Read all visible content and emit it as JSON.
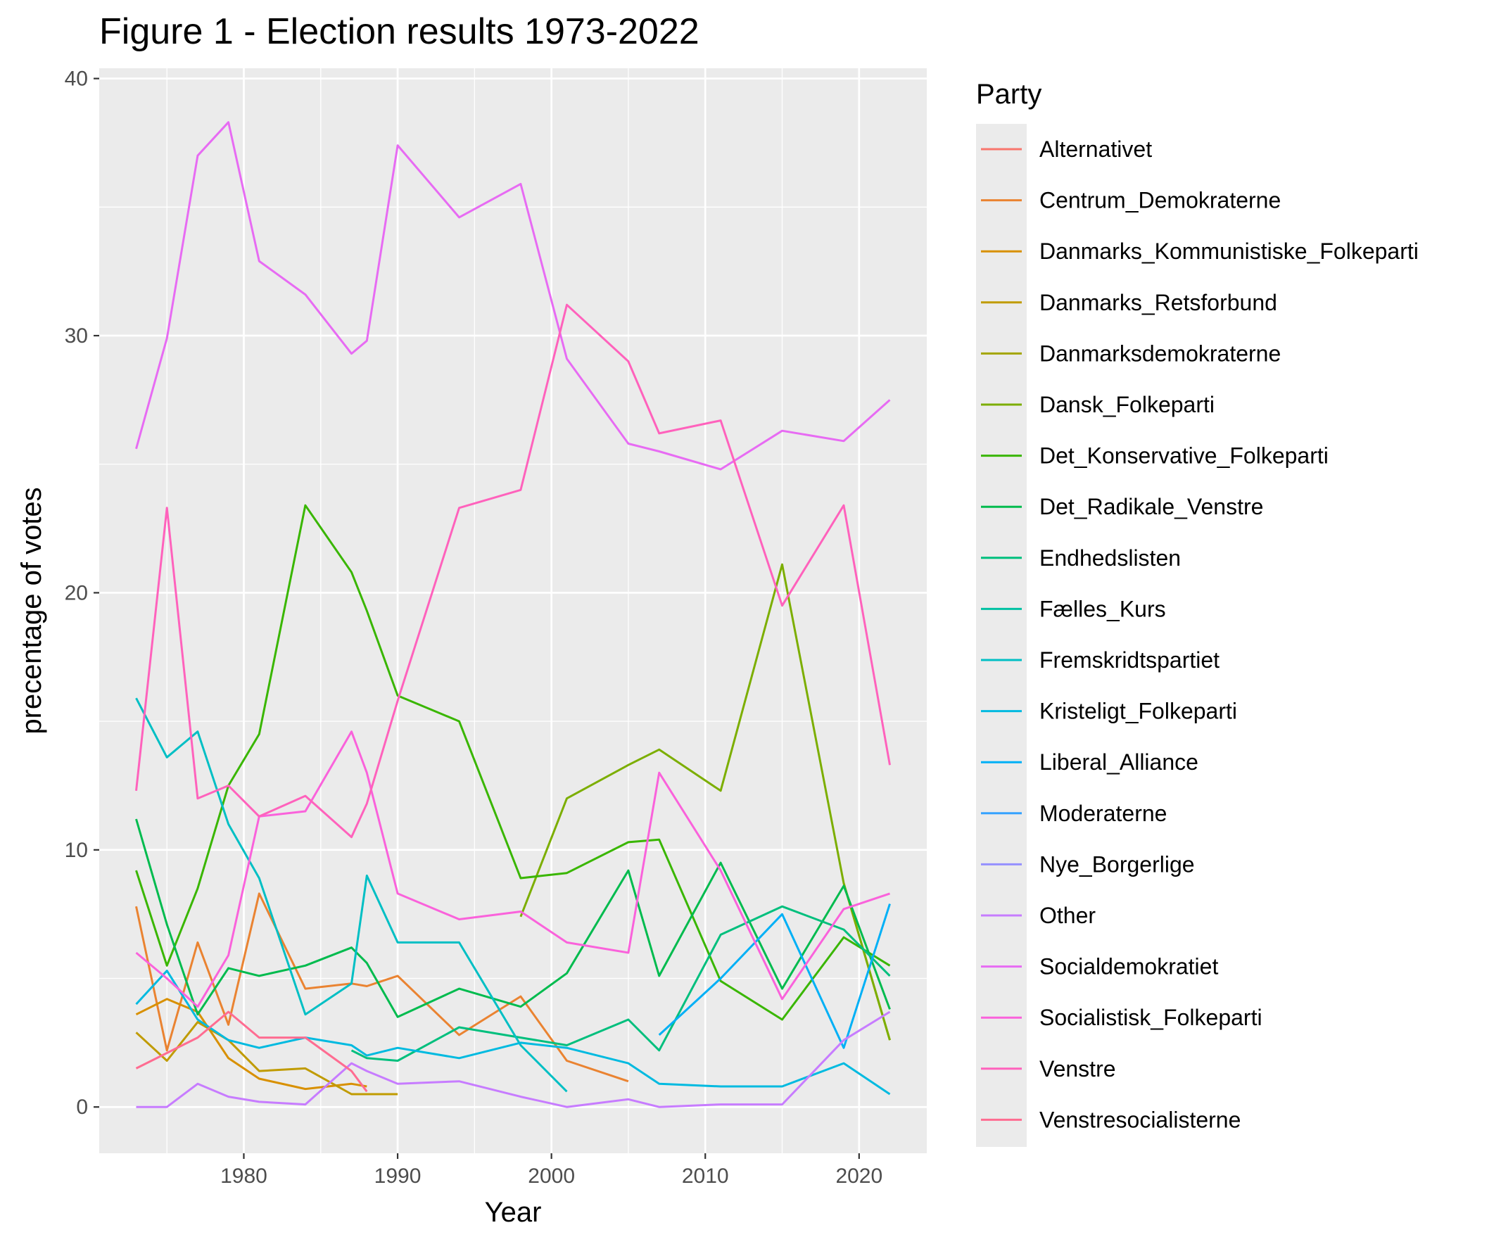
{
  "chart_data": {
    "type": "line",
    "title": "Figure 1 - Election results 1973-2022",
    "xlabel": "Year",
    "ylabel": "precentage of votes",
    "xlim": [
      1970.6,
      2024.4
    ],
    "ylim": [
      -1.8,
      40.4
    ],
    "x_ticks": [
      1980,
      1990,
      2000,
      2010,
      2020
    ],
    "y_ticks": [
      0,
      10,
      20,
      30,
      40
    ],
    "grid": true,
    "legend_title": "Party",
    "legend_position": "right",
    "series": [
      {
        "name": "Alternativet",
        "color": "#F8766D",
        "points": []
      },
      {
        "name": "Centrum_Demokraterne",
        "color": "#EA8331",
        "points": [
          [
            1973,
            7.8
          ],
          [
            1975,
            2.2
          ],
          [
            1977,
            6.4
          ],
          [
            1979,
            3.2
          ],
          [
            1981,
            8.3
          ],
          [
            1984,
            4.6
          ],
          [
            1987,
            4.8
          ],
          [
            1988,
            4.7
          ],
          [
            1990,
            5.1
          ],
          [
            1994,
            2.8
          ],
          [
            1998,
            4.3
          ],
          [
            2001,
            1.8
          ],
          [
            2005,
            1.0
          ]
        ]
      },
      {
        "name": "Danmarks_Kommunistiske_Folkeparti",
        "color": "#D89000",
        "points": [
          [
            1973,
            3.6
          ],
          [
            1975,
            4.2
          ],
          [
            1977,
            3.7
          ],
          [
            1979,
            1.9
          ],
          [
            1981,
            1.1
          ],
          [
            1984,
            0.7
          ],
          [
            1987,
            0.9
          ],
          [
            1988,
            0.8
          ]
        ]
      },
      {
        "name": "Danmarks_Retsforbund",
        "color": "#C09B00",
        "points": [
          [
            1973,
            2.9
          ],
          [
            1975,
            1.8
          ],
          [
            1977,
            3.3
          ],
          [
            1979,
            2.6
          ],
          [
            1981,
            1.4
          ],
          [
            1984,
            1.5
          ],
          [
            1987,
            0.5
          ],
          [
            1988,
            0.5
          ],
          [
            1990,
            0.5
          ]
        ]
      },
      {
        "name": "Danmarksdemokraterne",
        "color": "#A3A500",
        "points": [
          [
            2019,
            8.7
          ],
          [
            2022,
            2.6
          ]
        ]
      },
      {
        "name": "Dansk_Folkeparti",
        "color": "#7CAE00",
        "points": [
          [
            1998,
            7.4
          ],
          [
            2001,
            12.0
          ],
          [
            2005,
            13.3
          ],
          [
            2007,
            13.9
          ],
          [
            2011,
            12.3
          ],
          [
            2015,
            21.1
          ],
          [
            2019,
            8.7
          ],
          [
            2022,
            2.6
          ]
        ]
      },
      {
        "name": "Det_Konservative_Folkeparti",
        "color": "#39B600",
        "points": [
          [
            1973,
            9.2
          ],
          [
            1975,
            5.5
          ],
          [
            1977,
            8.5
          ],
          [
            1979,
            12.5
          ],
          [
            1981,
            14.5
          ],
          [
            1984,
            23.4
          ],
          [
            1987,
            20.8
          ],
          [
            1988,
            19.3
          ],
          [
            1990,
            16.0
          ],
          [
            1994,
            15.0
          ],
          [
            1998,
            8.9
          ],
          [
            2001,
            9.1
          ],
          [
            2005,
            10.3
          ],
          [
            2007,
            10.4
          ],
          [
            2011,
            4.9
          ],
          [
            2015,
            3.4
          ],
          [
            2019,
            6.6
          ],
          [
            2022,
            5.5
          ]
        ]
      },
      {
        "name": "Det_Radikale_Venstre",
        "color": "#00BB4E",
        "points": [
          [
            1973,
            11.2
          ],
          [
            1975,
            7.1
          ],
          [
            1977,
            3.6
          ],
          [
            1979,
            5.4
          ],
          [
            1981,
            5.1
          ],
          [
            1984,
            5.5
          ],
          [
            1987,
            6.2
          ],
          [
            1988,
            5.6
          ],
          [
            1990,
            3.5
          ],
          [
            1994,
            4.6
          ],
          [
            1998,
            3.9
          ],
          [
            2001,
            5.2
          ],
          [
            2005,
            9.2
          ],
          [
            2007,
            5.1
          ],
          [
            2011,
            9.5
          ],
          [
            2015,
            4.6
          ],
          [
            2019,
            8.6
          ],
          [
            2022,
            3.8
          ]
        ]
      },
      {
        "name": "Endhedslisten",
        "color": "#00BF7D",
        "points": [
          [
            1987,
            2.2
          ],
          [
            1988,
            1.9
          ],
          [
            1990,
            1.8
          ],
          [
            1994,
            3.1
          ],
          [
            1998,
            2.7
          ],
          [
            2001,
            2.4
          ],
          [
            2005,
            3.4
          ],
          [
            2007,
            2.2
          ],
          [
            2011,
            6.7
          ],
          [
            2015,
            7.8
          ],
          [
            2019,
            6.9
          ],
          [
            2022,
            5.1
          ]
        ]
      },
      {
        "name": "Fælles_Kurs",
        "color": "#00C1A3",
        "points": []
      },
      {
        "name": "Fremskridtspartiet",
        "color": "#00BFC4",
        "points": [
          [
            1973,
            15.9
          ],
          [
            1975,
            13.6
          ],
          [
            1977,
            14.6
          ],
          [
            1979,
            11.0
          ],
          [
            1981,
            8.9
          ],
          [
            1984,
            3.6
          ],
          [
            1987,
            4.8
          ],
          [
            1988,
            9.0
          ],
          [
            1990,
            6.4
          ],
          [
            1994,
            6.4
          ],
          [
            1998,
            2.4
          ],
          [
            2001,
            0.6
          ]
        ]
      },
      {
        "name": "Kristeligt_Folkeparti",
        "color": "#00BAE0",
        "points": [
          [
            1973,
            4.0
          ],
          [
            1975,
            5.3
          ],
          [
            1977,
            3.4
          ],
          [
            1979,
            2.6
          ],
          [
            1981,
            2.3
          ],
          [
            1984,
            2.7
          ],
          [
            1987,
            2.4
          ],
          [
            1988,
            2.0
          ],
          [
            1990,
            2.3
          ],
          [
            1994,
            1.9
          ],
          [
            1998,
            2.5
          ],
          [
            2001,
            2.3
          ],
          [
            2005,
            1.7
          ],
          [
            2007,
            0.9
          ],
          [
            2011,
            0.8
          ],
          [
            2015,
            0.8
          ],
          [
            2019,
            1.7
          ],
          [
            2022,
            0.5
          ]
        ]
      },
      {
        "name": "Liberal_Alliance",
        "color": "#00B0F6",
        "points": [
          [
            2007,
            2.8
          ],
          [
            2011,
            5.0
          ],
          [
            2015,
            7.5
          ],
          [
            2019,
            2.3
          ],
          [
            2022,
            7.9
          ]
        ]
      },
      {
        "name": "Moderaterne",
        "color": "#35A2FF",
        "points": []
      },
      {
        "name": "Nye_Borgerlige",
        "color": "#9590FF",
        "points": []
      },
      {
        "name": "Other",
        "color": "#C77CFF",
        "points": [
          [
            1973,
            0.0
          ],
          [
            1975,
            0.0
          ],
          [
            1977,
            0.9
          ],
          [
            1979,
            0.4
          ],
          [
            1981,
            0.2
          ],
          [
            1984,
            0.1
          ],
          [
            1987,
            1.7
          ],
          [
            1988,
            1.4
          ],
          [
            1990,
            0.9
          ],
          [
            1994,
            1.0
          ],
          [
            1998,
            0.4
          ],
          [
            2001,
            0.0
          ],
          [
            2005,
            0.3
          ],
          [
            2007,
            0.0
          ],
          [
            2011,
            0.1
          ],
          [
            2015,
            0.1
          ],
          [
            2019,
            2.6
          ],
          [
            2022,
            3.7
          ]
        ]
      },
      {
        "name": "Socialdemokratiet",
        "color": "#E76BF3",
        "points": [
          [
            1973,
            25.6
          ],
          [
            1975,
            29.9
          ],
          [
            1977,
            37.0
          ],
          [
            1979,
            38.3
          ],
          [
            1981,
            32.9
          ],
          [
            1984,
            31.6
          ],
          [
            1987,
            29.3
          ],
          [
            1988,
            29.8
          ],
          [
            1990,
            37.4
          ],
          [
            1994,
            34.6
          ],
          [
            1998,
            35.9
          ],
          [
            2001,
            29.1
          ],
          [
            2005,
            25.8
          ],
          [
            2007,
            25.5
          ],
          [
            2011,
            24.8
          ],
          [
            2015,
            26.3
          ],
          [
            2019,
            25.9
          ],
          [
            2022,
            27.5
          ]
        ]
      },
      {
        "name": "Socialistisk_Folkeparti",
        "color": "#FA62DB",
        "points": [
          [
            1973,
            6.0
          ],
          [
            1975,
            5.0
          ],
          [
            1977,
            3.9
          ],
          [
            1979,
            5.9
          ],
          [
            1981,
            11.3
          ],
          [
            1984,
            11.5
          ],
          [
            1987,
            14.6
          ],
          [
            1988,
            13.0
          ],
          [
            1990,
            8.3
          ],
          [
            1994,
            7.3
          ],
          [
            1998,
            7.6
          ],
          [
            2001,
            6.4
          ],
          [
            2005,
            6.0
          ],
          [
            2007,
            13.0
          ],
          [
            2011,
            9.2
          ],
          [
            2015,
            4.2
          ],
          [
            2019,
            7.7
          ],
          [
            2022,
            8.3
          ]
        ]
      },
      {
        "name": "Venstre",
        "color": "#FF62BC",
        "points": [
          [
            1973,
            12.3
          ],
          [
            1975,
            23.3
          ],
          [
            1977,
            12.0
          ],
          [
            1979,
            12.5
          ],
          [
            1981,
            11.3
          ],
          [
            1984,
            12.1
          ],
          [
            1987,
            10.5
          ],
          [
            1988,
            11.8
          ],
          [
            1990,
            15.8
          ],
          [
            1994,
            23.3
          ],
          [
            1998,
            24.0
          ],
          [
            2001,
            31.2
          ],
          [
            2005,
            29.0
          ],
          [
            2007,
            26.2
          ],
          [
            2011,
            26.7
          ],
          [
            2015,
            19.5
          ],
          [
            2019,
            23.4
          ],
          [
            2022,
            13.3
          ]
        ]
      },
      {
        "name": "Venstresocialisterne",
        "color": "#FF6C91",
        "points": [
          [
            1973,
            1.5
          ],
          [
            1975,
            2.1
          ],
          [
            1977,
            2.7
          ],
          [
            1979,
            3.7
          ],
          [
            1981,
            2.7
          ],
          [
            1984,
            2.7
          ],
          [
            1987,
            1.4
          ],
          [
            1988,
            0.6
          ]
        ]
      }
    ]
  }
}
